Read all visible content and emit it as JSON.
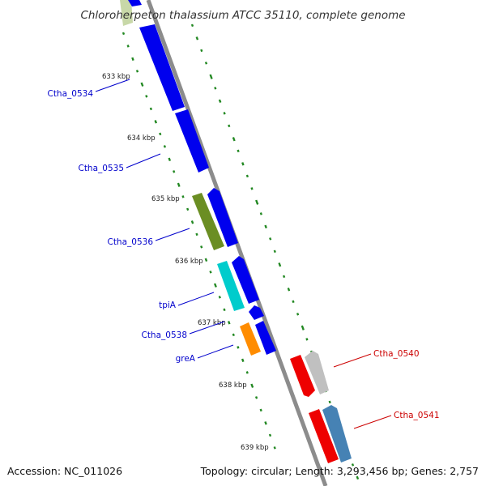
{
  "title": "Chloroherpeton thalassium ATCC 35110, complete genome",
  "accession": "Accession: NC_011026",
  "summary": "Topology: circular; Length: 3,293,456 bp; Genes: 2,757",
  "ticks": [
    "633 kbp",
    "634 kbp",
    "635 kbp",
    "636 kbp",
    "637 kbp",
    "638 kbp",
    "639 kbp"
  ],
  "genes": [
    {
      "label": "Ctha_0534",
      "color": "#0000cc"
    },
    {
      "label": "Ctha_0535",
      "color": "#0000cc"
    },
    {
      "label": "Ctha_0536",
      "color": "#0000cc"
    },
    {
      "label": "tpiA",
      "color": "#0000cc"
    },
    {
      "label": "Ctha_0538",
      "color": "#0000cc"
    },
    {
      "label": "greA",
      "color": "#0000cc"
    },
    {
      "label": "Ctha_0540",
      "color": "#cc0000"
    },
    {
      "label": "Ctha_0541",
      "color": "#cc0000"
    }
  ],
  "colors": {
    "backbone": "#909090",
    "forward_cds": "#0000ee",
    "reverse_cds": "#ee0000",
    "gc_skew_dots": "#228822",
    "olive_feature": "#6b8e23",
    "cyan_feature": "#00cccc",
    "orange_feature": "#ff8c00",
    "grey_feature": "#c0c0c0",
    "steelblue_feature": "#4682b4"
  }
}
